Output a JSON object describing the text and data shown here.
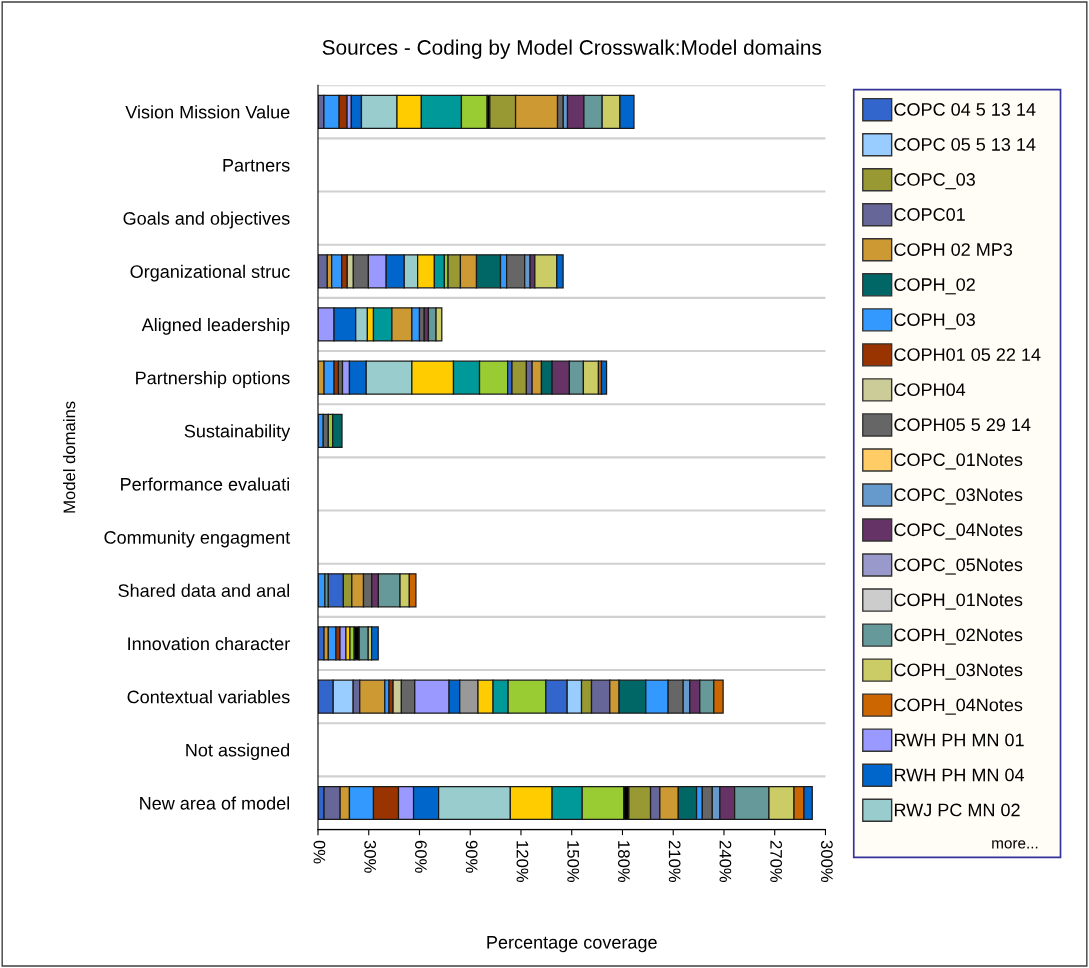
{
  "chart_data": {
    "type": "bar",
    "orientation": "horizontal",
    "stacked": true,
    "title": "Sources - Coding by Model Crosswalk:Model domains",
    "xlabel": "Percentage coverage",
    "ylabel": "Model domains",
    "categories": [
      "Vision Mission Value",
      "Partners",
      "Goals and objectives",
      "Organizational struc",
      "Aligned leadership",
      "Partnership options",
      "Sustainability",
      "Performance evaluati",
      "Community engagment",
      "Shared data and anal",
      "Innovation character",
      "Contextual variables",
      "Not assigned",
      "New area of model"
    ],
    "xlim": [
      0,
      300
    ],
    "xticks": [
      {
        "value": 0,
        "label": "0%"
      },
      {
        "value": 30,
        "label": "30%"
      },
      {
        "value": 60,
        "label": "60%"
      },
      {
        "value": 90,
        "label": "90%"
      },
      {
        "value": 120,
        "label": "120%"
      },
      {
        "value": 150,
        "label": "150%"
      },
      {
        "value": 180,
        "label": "180%"
      },
      {
        "value": 210,
        "label": "210%"
      },
      {
        "value": 240,
        "label": "240%"
      },
      {
        "value": 270,
        "label": "270%"
      },
      {
        "value": 300,
        "label": "300%"
      }
    ],
    "grid": "y",
    "legend": "right",
    "annotations": [
      "more..."
    ],
    "series": [
      {
        "name": "COPC 04 5 13 14",
        "color": "#3366cc",
        "values": [
          null,
          null,
          null,
          null,
          null,
          null,
          null,
          null,
          null,
          null,
          3.6,
          9,
          null,
          3.6
        ]
      },
      {
        "name": "COPC 05 5 13 14",
        "color": "#99ccff",
        "values": [
          null,
          null,
          null,
          null,
          null,
          null,
          null,
          null,
          null,
          null,
          null,
          11.8,
          null,
          null
        ]
      },
      {
        "name": "COPC_03",
        "color": "#999933",
        "values": [
          null,
          null,
          null,
          null,
          null,
          null,
          null,
          null,
          null,
          null,
          null,
          null,
          null,
          null
        ]
      },
      {
        "name": "COPC01",
        "color": "#666699",
        "values": [
          3.5,
          null,
          null,
          5.5,
          null,
          null,
          null,
          null,
          null,
          null,
          null,
          3.9,
          null,
          9.5
        ]
      },
      {
        "name": "COPH 02 MP3",
        "color": "#cc9933",
        "values": [
          null,
          null,
          null,
          2.6,
          null,
          3.6,
          null,
          null,
          null,
          null,
          2.5,
          14.8,
          null,
          5.5
        ]
      },
      {
        "name": "COPH_02",
        "color": "#006666",
        "values": [
          null,
          null,
          null,
          null,
          null,
          null,
          null,
          null,
          null,
          null,
          null,
          null,
          null,
          null
        ]
      },
      {
        "name": "COPH_03",
        "color": "#3399ff",
        "values": [
          9,
          null,
          null,
          5.9,
          null,
          5.9,
          3.1,
          null,
          null,
          4.1,
          4.5,
          2.5,
          null,
          14.2
        ]
      },
      {
        "name": "COPH01 05 22 14",
        "color": "#993300",
        "values": [
          4.7,
          null,
          null,
          3.3,
          null,
          2.6,
          null,
          null,
          null,
          null,
          2.4,
          2.4,
          null,
          14.8
        ]
      },
      {
        "name": "COPH04",
        "color": "#cccc99",
        "values": [
          null,
          null,
          null,
          3.6,
          null,
          null,
          null,
          null,
          null,
          null,
          null,
          4.9,
          null,
          null
        ]
      },
      {
        "name": "COPH05 5 29 14",
        "color": "#666666",
        "values": [
          null,
          null,
          null,
          8.9,
          null,
          2.4,
          3,
          null,
          null,
          null,
          null,
          7.9,
          null,
          null
        ]
      },
      {
        "name": "COPC_01Notes",
        "color": "#ffcc66",
        "values": [
          null,
          null,
          null,
          null,
          null,
          null,
          null,
          null,
          null,
          null,
          null,
          null,
          null,
          null
        ]
      },
      {
        "name": "COPC_03Notes",
        "color": "#6699cc",
        "values": [
          null,
          null,
          null,
          null,
          null,
          null,
          null,
          null,
          null,
          null,
          null,
          null,
          null,
          null
        ]
      },
      {
        "name": "COPC_04Notes",
        "color": "#663366",
        "values": [
          null,
          null,
          null,
          null,
          null,
          null,
          null,
          null,
          null,
          null,
          null,
          null,
          null,
          null
        ]
      },
      {
        "name": "COPC_05Notes",
        "color": "#9999cc",
        "values": [
          null,
          null,
          null,
          null,
          null,
          null,
          null,
          null,
          null,
          null,
          null,
          null,
          null,
          null
        ]
      },
      {
        "name": "COPH_01Notes",
        "color": "#cccccc",
        "values": [
          null,
          null,
          null,
          null,
          null,
          null,
          null,
          null,
          null,
          null,
          null,
          null,
          null,
          null
        ]
      },
      {
        "name": "COPH_02Notes",
        "color": "#669999",
        "values": [
          null,
          null,
          null,
          null,
          null,
          null,
          null,
          null,
          null,
          2,
          null,
          null,
          null,
          null
        ]
      },
      {
        "name": "COPH_03Notes",
        "color": "#cccc66",
        "values": [
          null,
          null,
          null,
          null,
          null,
          null,
          null,
          null,
          null,
          null,
          null,
          null,
          null,
          null
        ]
      },
      {
        "name": "COPH_04Notes",
        "color": "#cc6600",
        "values": [
          null,
          null,
          null,
          null,
          null,
          null,
          null,
          null,
          null,
          null,
          null,
          null,
          null,
          null
        ]
      },
      {
        "name": "RWH PH MN 01",
        "color": "#9999ff",
        "values": [
          2.5,
          null,
          null,
          10.5,
          9.5,
          4.1,
          null,
          null,
          null,
          null,
          3.5,
          20.3,
          null,
          8.9
        ]
      },
      {
        "name": "RWH PH MN 04",
        "color": "#0066cc",
        "values": [
          6,
          null,
          null,
          10.7,
          12.8,
          9.9,
          null,
          null,
          null,
          null,
          null,
          6.3,
          null,
          14.8
        ]
      },
      {
        "name": "RWJ PC MN 02",
        "color": "#99cccc",
        "values": [
          21,
          null,
          null,
          7.9,
          6.9,
          27,
          null,
          null,
          null,
          null,
          null,
          null,
          null,
          42.4
        ]
      },
      {
        "color": "#999999",
        "values": [
          null,
          null,
          null,
          null,
          null,
          null,
          null,
          null,
          null,
          null,
          null,
          10.8,
          null,
          null
        ]
      },
      {
        "color": "#ffcc00",
        "values": [
          14.4,
          null,
          null,
          9.9,
          3.6,
          24.6,
          null,
          null,
          null,
          null,
          2.4,
          8.9,
          null,
          24.7
        ]
      },
      {
        "color": "#009999",
        "values": [
          23.7,
          null,
          null,
          5.9,
          10.9,
          15.4,
          null,
          null,
          null,
          null,
          null,
          8.9,
          null,
          17.8
        ]
      },
      {
        "color": "#99cc33",
        "values": [
          15.2,
          null,
          null,
          2.2,
          null,
          16.6,
          2.6,
          null,
          null,
          null,
          2.5,
          22.3,
          null,
          24.6
        ]
      },
      {
        "color": "#000000",
        "values": [
          1.6,
          null,
          null,
          null,
          null,
          null,
          null,
          null,
          null,
          null,
          3,
          null,
          null,
          3
        ]
      },
      {
        "color": "#3366cc",
        "values": [
          null,
          null,
          null,
          null,
          null,
          2.6,
          null,
          null,
          null,
          8.9,
          null,
          12.6,
          null,
          null
        ]
      },
      {
        "color": "#99ccff",
        "values": [
          null,
          null,
          null,
          null,
          null,
          null,
          null,
          null,
          null,
          null,
          null,
          8.5,
          null,
          null
        ]
      },
      {
        "color": "#999933",
        "values": [
          15.2,
          null,
          null,
          7.3,
          null,
          8.5,
          null,
          null,
          null,
          5,
          null,
          5.9,
          null,
          12.8
        ]
      },
      {
        "color": "#666699",
        "values": [
          null,
          null,
          null,
          null,
          null,
          3.4,
          null,
          null,
          null,
          null,
          null,
          10.8,
          null,
          5.5
        ]
      },
      {
        "color": "#cc9933",
        "values": [
          24.8,
          null,
          null,
          9.5,
          11.8,
          5.5,
          null,
          null,
          null,
          6.9,
          null,
          5.5,
          null,
          10.9
        ]
      },
      {
        "color": "#006666",
        "values": [
          null,
          null,
          null,
          14.2,
          null,
          6.3,
          5.5,
          null,
          null,
          null,
          null,
          15.8,
          null,
          10.8
        ]
      },
      {
        "color": "#3399ff",
        "values": [
          null,
          null,
          null,
          3.6,
          4.5,
          null,
          null,
          null,
          null,
          null,
          null,
          13.2,
          null,
          3.4
        ]
      },
      {
        "color": "#666666",
        "values": [
          3.4,
          null,
          null,
          10.7,
          2.8,
          null,
          null,
          null,
          null,
          4.9,
          null,
          8.9,
          null,
          5.9
        ]
      },
      {
        "color": "#6699cc",
        "values": [
          2.5,
          null,
          null,
          3.2,
          null,
          null,
          null,
          null,
          null,
          null,
          null,
          3.9,
          null,
          4.5
        ]
      },
      {
        "color": "#663366",
        "values": [
          9.7,
          null,
          null,
          2.8,
          2.5,
          10.2,
          null,
          null,
          null,
          3.9,
          null,
          5.9,
          null,
          8.7
        ]
      },
      {
        "color": "#669999",
        "values": [
          10.8,
          null,
          null,
          null,
          4.5,
          8.3,
          null,
          null,
          null,
          12.8,
          5.3,
          8.3,
          null,
          20.3
        ]
      },
      {
        "color": "#cccc66",
        "values": [
          10.5,
          null,
          null,
          13,
          3.4,
          8.9,
          null,
          null,
          null,
          5.5,
          2,
          null,
          null,
          14.8
        ]
      },
      {
        "color": "#cc6600",
        "values": [
          null,
          null,
          null,
          null,
          null,
          1.8,
          null,
          null,
          null,
          3.9,
          null,
          5.5,
          null,
          5.9
        ]
      },
      {
        "color": "#0066cc",
        "values": [
          8.3,
          null,
          null,
          3.7,
          null,
          3,
          null,
          null,
          null,
          null,
          3.9,
          null,
          null,
          4.9
        ]
      }
    ]
  }
}
